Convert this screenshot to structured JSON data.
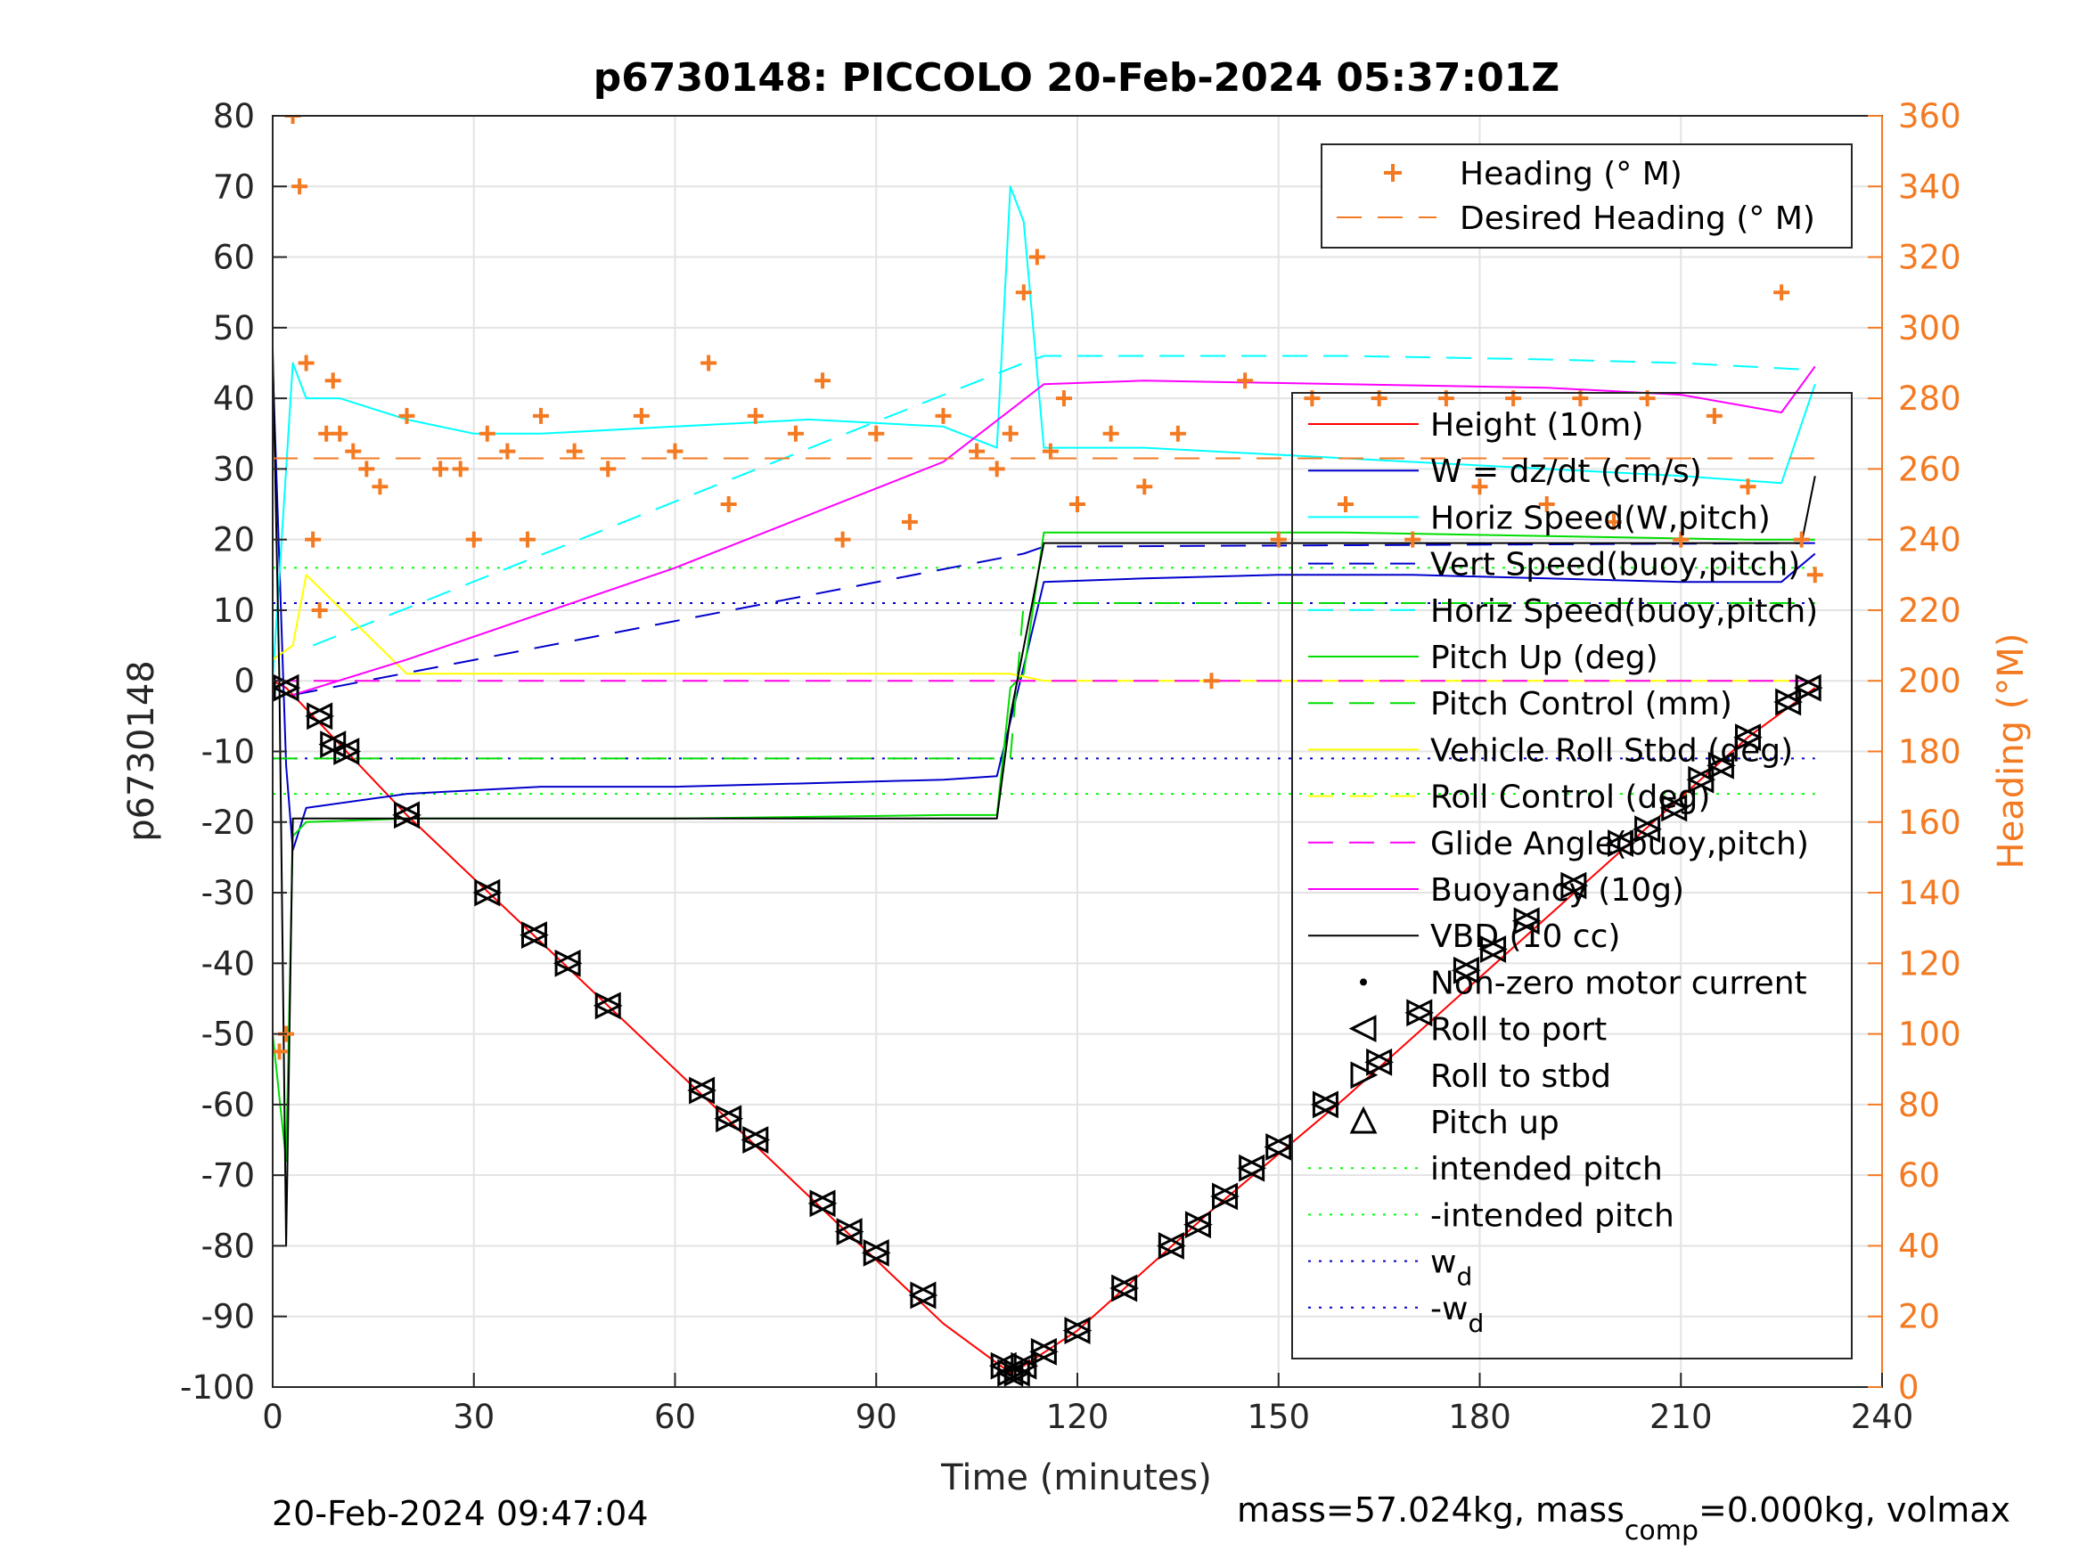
{
  "chart_data": {
    "type": "line",
    "title": "p6730148: PICCOLO 20-Feb-2024 05:37:01Z",
    "xlabel": "Time (minutes)",
    "ylabel": "p6730148",
    "y2label": "Heading (°M)",
    "xlim": [
      0,
      240
    ],
    "ylim": [
      -100,
      80
    ],
    "y2lim": [
      0,
      360
    ],
    "xticks": [
      0,
      30,
      60,
      90,
      120,
      150,
      180,
      210,
      240
    ],
    "yticks": [
      80,
      70,
      60,
      50,
      40,
      30,
      20,
      10,
      0,
      -10,
      -20,
      -30,
      -40,
      -50,
      -60,
      -70,
      -80,
      -90,
      -100
    ],
    "y2ticks": [
      360,
      340,
      320,
      300,
      280,
      260,
      240,
      220,
      200,
      180,
      160,
      140,
      120,
      100,
      80,
      60,
      40,
      20,
      0
    ],
    "grid": true,
    "legend_right_axis": [
      "Heading (° M)",
      "Desired Heading (° M)"
    ],
    "legend_left_axis": [
      "Height (10m)",
      "W = dz/dt (cm/s)",
      "Horiz Speed(W,pitch)",
      "Vert Speed(buoy,pitch)",
      "Horiz Speed(buoy,pitch)",
      "Pitch Up (deg)",
      "Pitch Control (mm)",
      "Vehicle Roll Stbd (deg)",
      "Roll Control (deg)",
      "Glide Angle(buoy,pitch)",
      "Buoyancy (10g)",
      "VBD (10 cc)",
      "Non-zero motor current",
      "Roll to port",
      "Roll to stbd",
      "Pitch up",
      "intended pitch",
      "-intended pitch",
      "w",
      "-w"
    ],
    "legend_subscript": "d",
    "colors": {
      "height": "#ff0000",
      "w": "#0000cc",
      "horiz": "#00ffff",
      "pitch": "#00dd00",
      "roll": "#ffff00",
      "glide": "#ff00ff",
      "vbd": "#000000",
      "heading": "#f47a22"
    },
    "series": [
      {
        "name": "Height (10m)",
        "x": [
          0,
          2,
          20,
          40,
          60,
          80,
          100,
          110,
          112,
          120,
          140,
          160,
          180,
          200,
          220,
          230
        ],
        "y": [
          0,
          -1,
          -19,
          -37,
          -55,
          -73,
          -91,
          -98,
          -97,
          -92,
          -75,
          -59,
          -42,
          -25,
          -8,
          -1
        ]
      },
      {
        "name": "W = dz/dt (cm/s)",
        "x": [
          0,
          2,
          3,
          5,
          20,
          40,
          60,
          80,
          100,
          108,
          112,
          115,
          130,
          150,
          170,
          190,
          210,
          225,
          230
        ],
        "y": [
          45,
          -12,
          -24,
          -18,
          -16,
          -15,
          -15,
          -14.5,
          -14,
          -13.5,
          2,
          14,
          14.5,
          15,
          15,
          14.5,
          14,
          14,
          18
        ]
      },
      {
        "name": "Horiz Speed(W,pitch)",
        "x": [
          0,
          2,
          3,
          5,
          10,
          20,
          30,
          40,
          60,
          80,
          100,
          108,
          110,
          112,
          115,
          130,
          150,
          170,
          190,
          210,
          225,
          230
        ],
        "y": [
          0,
          30,
          45,
          40,
          40,
          37,
          35,
          35,
          36,
          37,
          36,
          33,
          70,
          65,
          33,
          33,
          32,
          31,
          30,
          29,
          28,
          42
        ]
      },
      {
        "name": "Vert Speed(buoy,pitch)",
        "x": [
          3,
          112,
          115,
          230
        ],
        "y": [
          -2,
          18,
          19,
          19.5
        ]
      },
      {
        "name": "Horiz Speed(buoy,pitch)",
        "x": [
          6,
          112,
          115,
          130,
          160,
          190,
          210,
          230
        ],
        "y": [
          5,
          45,
          46,
          46,
          46,
          45.5,
          45,
          44
        ]
      },
      {
        "name": "Pitch Up (deg)",
        "x": [
          0,
          2,
          3,
          5,
          20,
          60,
          100,
          108,
          110,
          112,
          115,
          130,
          160,
          190,
          220,
          230
        ],
        "y": [
          -50,
          -68,
          -22,
          -20,
          -19.5,
          -19.5,
          -19,
          -19,
          -1,
          1,
          21,
          21,
          21,
          20.5,
          20,
          20
        ]
      },
      {
        "name": "Pitch Control (mm)",
        "x": [
          0,
          3,
          10,
          60,
          110,
          112,
          230
        ],
        "y": [
          -11,
          -11,
          -11,
          -11,
          -11,
          11,
          11
        ]
      },
      {
        "name": "Vehicle Roll Stbd (deg)",
        "x": [
          0,
          3,
          5,
          20,
          60,
          100,
          110,
          115,
          150,
          200,
          230
        ],
        "y": [
          3,
          5,
          15,
          1,
          1,
          1,
          1,
          0,
          0,
          0,
          0
        ]
      },
      {
        "name": "Roll Control (deg)",
        "x": [
          0,
          110,
          115,
          230
        ],
        "y": [
          0,
          0,
          0,
          0
        ]
      },
      {
        "name": "Glide Angle(buoy,pitch)",
        "x": [
          0,
          230
        ],
        "y": [
          0,
          0
        ]
      },
      {
        "name": "Buoyancy (10g)",
        "x": [
          3,
          20,
          60,
          100,
          115,
          130,
          160,
          190,
          210,
          225,
          230
        ],
        "y": [
          -2,
          3,
          16,
          31,
          42,
          42.5,
          42,
          41.5,
          40.5,
          38,
          44.5
        ]
      },
      {
        "name": "VBD (10 cc)",
        "x": [
          0,
          1,
          2,
          3,
          10,
          60,
          108,
          110,
          115,
          150,
          200,
          228,
          230
        ],
        "y": [
          47,
          0,
          -80,
          -19.5,
          -19.5,
          -19.5,
          -19.5,
          -5,
          19.5,
          19.5,
          19.5,
          19.5,
          29
        ]
      },
      {
        "name": "Heading (° M)",
        "axis": "right",
        "x": [
          1,
          2,
          3,
          4,
          5,
          6,
          7,
          8,
          9,
          10,
          12,
          14,
          16,
          20,
          25,
          28,
          30,
          32,
          35,
          38,
          40,
          45,
          50,
          55,
          60,
          65,
          68,
          72,
          78,
          82,
          85,
          90,
          95,
          100,
          105,
          108,
          110,
          112,
          114,
          116,
          118,
          120,
          125,
          130,
          135,
          140,
          145,
          150,
          155,
          160,
          165,
          170,
          175,
          180,
          185,
          190,
          195,
          200,
          205,
          210,
          215,
          220,
          225,
          228,
          230
        ],
        "y": [
          95,
          100,
          360,
          340,
          290,
          240,
          220,
          270,
          285,
          270,
          265,
          260,
          255,
          275,
          260,
          260,
          240,
          270,
          265,
          240,
          275,
          265,
          260,
          275,
          265,
          290,
          250,
          275,
          270,
          285,
          240,
          270,
          245,
          275,
          265,
          260,
          270,
          310,
          320,
          265,
          280,
          250,
          270,
          255,
          270,
          200,
          285,
          240,
          280,
          250,
          280,
          240,
          280,
          255,
          280,
          250,
          280,
          245,
          280,
          240,
          275,
          255,
          310,
          240,
          230
        ]
      },
      {
        "name": "Desired Heading (° M)",
        "axis": "right",
        "x": [
          0,
          230
        ],
        "y": [
          263,
          263
        ]
      },
      {
        "name": "Roll to port",
        "x": [
          2,
          7,
          9,
          11,
          20,
          32,
          39,
          44,
          50,
          64,
          68,
          72,
          82,
          86,
          90,
          97,
          109,
          110,
          111,
          112,
          115,
          120,
          127,
          134,
          138,
          142,
          146,
          150,
          157,
          165,
          171,
          178,
          182,
          187,
          194,
          201,
          205,
          209,
          213,
          216,
          220,
          226,
          229
        ],
        "y": [
          -1,
          -5,
          -9,
          -10,
          -19,
          -30,
          -36,
          -40,
          -46,
          -58,
          -62,
          -65,
          -74,
          -78,
          -81,
          -87,
          -97,
          -98,
          -98,
          -97,
          -95,
          -92,
          -86,
          -80,
          -77,
          -73,
          -69,
          -66,
          -60,
          -54,
          -47,
          -41,
          -38,
          -34,
          -29,
          -23,
          -21,
          -18,
          -14,
          -12,
          -8,
          -3,
          -1
        ]
      }
    ],
    "footer_left": "20-Feb-2024 09:47:04",
    "footer_right_prefix": "mass=57.024kg, mass",
    "footer_right_sub": "comp",
    "footer_right_suffix": "=0.000kg, volmax"
  }
}
